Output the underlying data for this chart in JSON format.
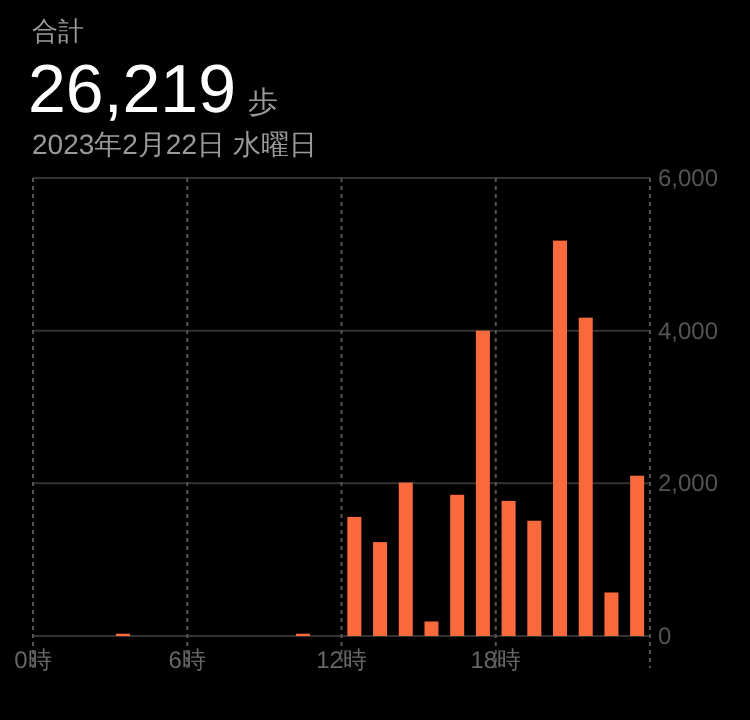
{
  "chart_data": {
    "type": "bar",
    "title": "合計",
    "subtitle": "26,219 歩",
    "annotations": [
      "2023年2月22日 水曜日"
    ],
    "x": [
      0.5,
      1.5,
      2.5,
      3.5,
      4.5,
      5.5,
      6.5,
      7.5,
      8.5,
      9.5,
      10.5,
      11.5,
      12.5,
      13.5,
      14.5,
      15.5,
      16.5,
      17.5,
      18.5,
      19.5,
      20.5,
      21.5,
      22.5,
      23.5
    ],
    "values": [
      0,
      0,
      0,
      30,
      0,
      0,
      0,
      0,
      0,
      0,
      30,
      0,
      1560,
      1230,
      2010,
      190,
      1850,
      4000,
      1770,
      1510,
      5180,
      4170,
      570,
      2100
    ],
    "xlim": [
      0,
      24
    ],
    "xticks": [
      {
        "value": 0,
        "label": "0時"
      },
      {
        "value": 6,
        "label": "6時"
      },
      {
        "value": 12,
        "label": "12時"
      },
      {
        "value": 18,
        "label": "18時"
      },
      {
        "value": 24,
        "label": null
      }
    ],
    "color": "#fa6a3c",
    "ylim": [
      0,
      6000
    ],
    "yticks": [
      {
        "value": 0,
        "label": "0"
      },
      {
        "value": 2000,
        "label": "2,000"
      },
      {
        "value": 4000,
        "label": "4,000"
      },
      {
        "value": 6000,
        "label": "6,000"
      }
    ],
    "grid": true
  }
}
